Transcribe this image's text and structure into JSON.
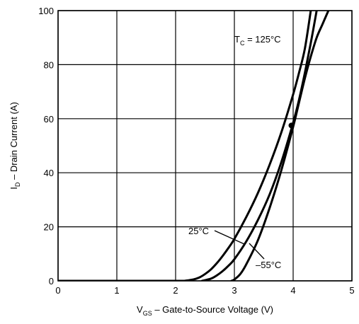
{
  "chart_data": {
    "type": "line",
    "title": "",
    "xlabel": {
      "prefix": "V",
      "subscript": "GS",
      "suffix": " – Gate-to-Source Voltage (V)"
    },
    "ylabel": {
      "prefix": "I",
      "subscript": "D",
      "suffix": " – Drain Current (A)"
    },
    "xlim": [
      0,
      5
    ],
    "ylim": [
      0,
      100
    ],
    "x_ticks": [
      "0",
      "1",
      "2",
      "3",
      "4",
      "5"
    ],
    "y_ticks": [
      "0",
      "20",
      "40",
      "60",
      "80",
      "100"
    ],
    "grid": true,
    "series": [
      {
        "name": "T_C = 125°C",
        "label": {
          "prefix": "T",
          "subscript": "C",
          "suffix": " = 125°C"
        },
        "x": [
          2.15,
          2.3,
          2.4,
          2.5,
          2.6,
          2.7,
          2.8,
          2.9,
          3.0,
          3.2,
          3.4,
          3.6,
          3.8,
          4.0,
          4.1,
          4.2,
          4.3
        ],
        "y": [
          0,
          0.5,
          1.2,
          2.5,
          4.2,
          6.5,
          9.2,
          12.2,
          15.5,
          23.5,
          32.5,
          43,
          55,
          69,
          77,
          86,
          100
        ]
      },
      {
        "name": "25°C",
        "label": {
          "prefix": "25°C",
          "subscript": "",
          "suffix": ""
        },
        "x": [
          2.45,
          2.6,
          2.7,
          2.8,
          2.9,
          3.0,
          3.2,
          3.4,
          3.6,
          3.8,
          4.0,
          4.1,
          4.2,
          4.3,
          4.4
        ],
        "y": [
          0,
          0.8,
          2.0,
          3.6,
          5.6,
          8.0,
          14.5,
          22.5,
          32,
          44,
          58.5,
          67,
          77,
          88,
          100
        ]
      },
      {
        "name": "–55°C",
        "label": {
          "prefix": "–55°C",
          "subscript": "",
          "suffix": ""
        },
        "x": [
          2.95,
          3.0,
          3.1,
          3.2,
          3.4,
          3.6,
          3.8,
          4.0,
          4.1,
          4.2,
          4.3,
          4.4,
          4.5,
          4.6
        ],
        "y": [
          0,
          0.5,
          2.5,
          6.0,
          15,
          27,
          41,
          57,
          66,
          75,
          83,
          90,
          95,
          100
        ]
      }
    ],
    "crossover_point": {
      "x": 3.97,
      "y": 57.5
    }
  }
}
